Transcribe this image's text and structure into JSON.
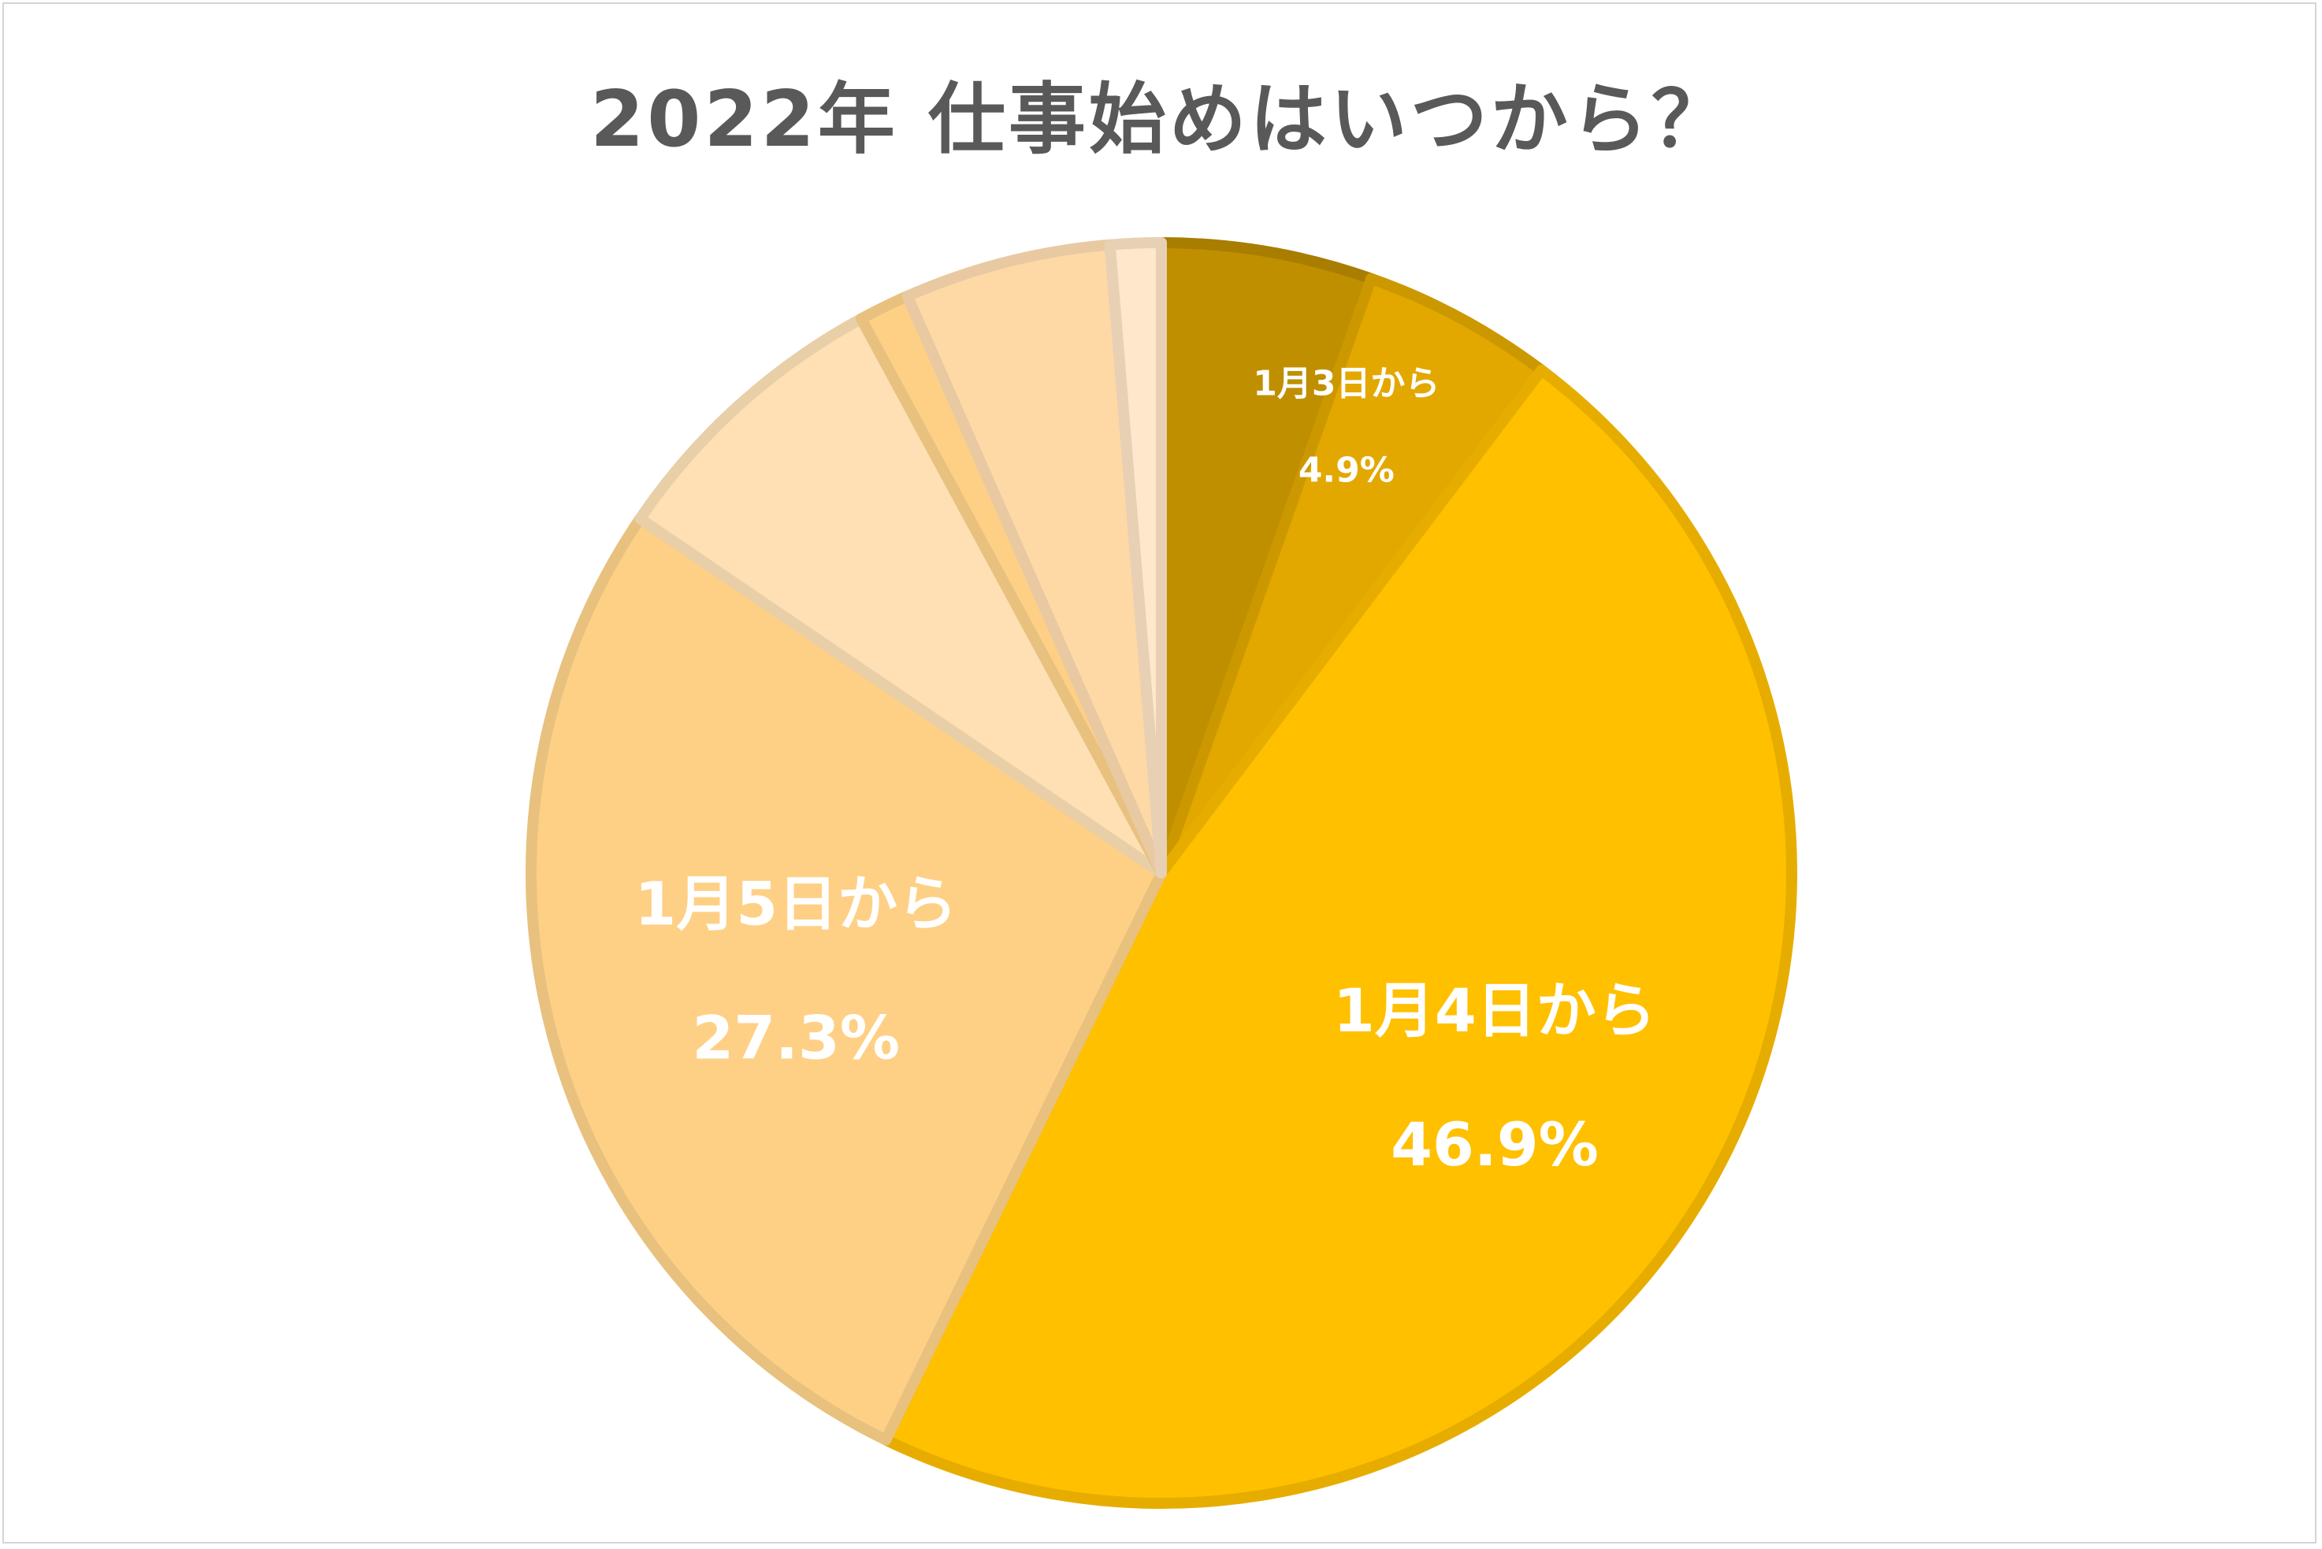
{
  "chart_data": {
    "type": "pie",
    "title": "2022年 仕事始めはいつから？",
    "start_angle_deg": 0,
    "direction": "clockwise",
    "slices": [
      {
        "value": 5.4,
        "color": "#BF8F00",
        "stroke": "#A87D00"
      },
      {
        "value": 4.9,
        "color": "#E2A800",
        "stroke": "#CC9800",
        "label": "1月3日から",
        "pct": "4.9%"
      },
      {
        "value": 46.9,
        "color": "#FFC000",
        "stroke": "#E6AD00",
        "label": "1月4日から",
        "pct": "46.9%"
      },
      {
        "value": 27.3,
        "color": "#FED086",
        "stroke": "#E8C17F",
        "label": "1月5日から",
        "pct": "27.3%"
      },
      {
        "value": 7.6,
        "color": "#FEE0B4",
        "stroke": "#E8CFA8"
      },
      {
        "value": 1.3,
        "color": "#FED086",
        "stroke": "#E8C17F"
      },
      {
        "value": 5.3,
        "color": "#FED9A6",
        "stroke": "#E8C9A2"
      },
      {
        "value": 1.3,
        "color": "#FFE7CC",
        "stroke": "#E8D0B4"
      }
    ]
  }
}
